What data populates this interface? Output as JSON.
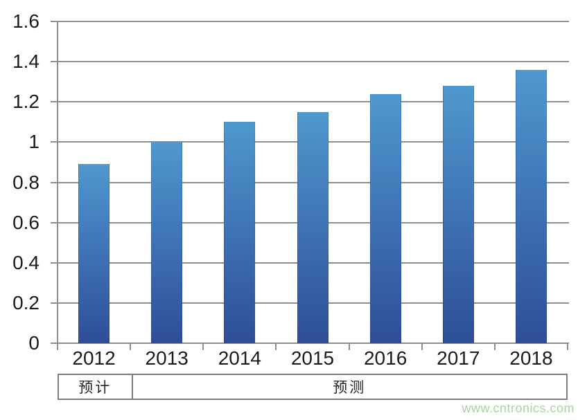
{
  "page": {
    "background": "#ffffff"
  },
  "watermark": {
    "text": "www.cntronics.com",
    "color": "#a8d4a1"
  },
  "chart_data": {
    "type": "bar",
    "categories": [
      "2012",
      "2013",
      "2014",
      "2015",
      "2016",
      "2017",
      "2018"
    ],
    "values": [
      0.89,
      1.0,
      1.1,
      1.15,
      1.24,
      1.28,
      1.36
    ],
    "title": "",
    "xlabel": "",
    "ylabel": "",
    "ylim": [
      0,
      1.6
    ],
    "ytick_step": 0.2,
    "ytick_labels": [
      "0",
      "0.2",
      "0.4",
      "0.6",
      "0.8",
      "1",
      "1.2",
      "1.4",
      "1.6"
    ],
    "grid": "horizontal",
    "legend_position": "none",
    "bar_color_top": "#4f98d0",
    "bar_color_bottom": "#2e4e96",
    "gridline_color": "#8d8d8d",
    "footer_segments": [
      {
        "label": "预计",
        "span": 1
      },
      {
        "label": "预测",
        "span": 6
      }
    ]
  }
}
